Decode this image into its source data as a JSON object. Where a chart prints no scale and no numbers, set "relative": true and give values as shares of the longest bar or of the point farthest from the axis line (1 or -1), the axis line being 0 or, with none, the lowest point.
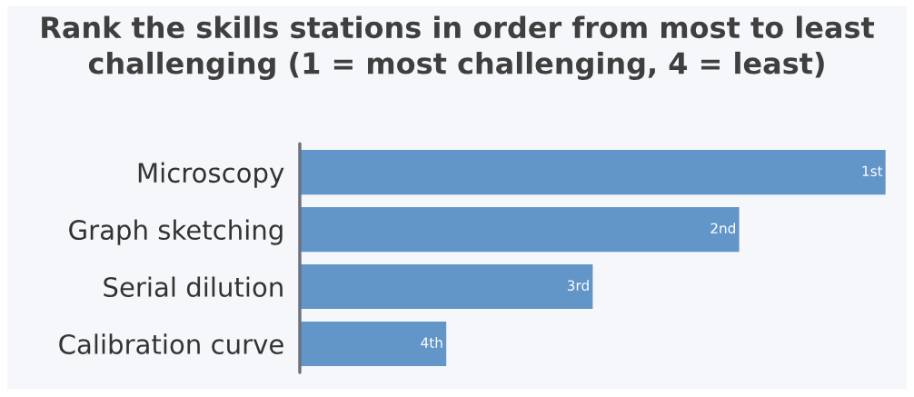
{
  "chart_data": {
    "type": "bar",
    "orientation": "horizontal",
    "relative": true,
    "title": "Rank the skills stations in order from most to least challenging (1 = most challenging, 4 = least)",
    "categories": [
      "Microscopy",
      "Graph sketching",
      "Serial dilution",
      "Calibration curve"
    ],
    "values": [
      1,
      0.75,
      0.5,
      0.25
    ],
    "annotations": [
      {
        "text": "1st",
        "x": 1,
        "y": "Microscopy"
      },
      {
        "text": "2nd",
        "x": 0.75,
        "y": "Graph sketching"
      },
      {
        "text": "3rd",
        "x": 0.5,
        "y": "Serial dilution"
      },
      {
        "text": "4th",
        "x": 0.25,
        "y": "Calibration curve"
      }
    ],
    "color": "#6295c8",
    "grid": false,
    "legend": false
  }
}
